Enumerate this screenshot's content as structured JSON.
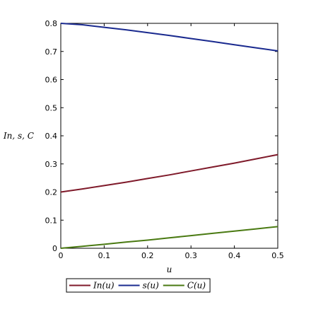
{
  "chart_data": {
    "type": "line",
    "xlabel": "u",
    "ylabel": "In, s, C",
    "xlim": [
      0,
      0.5
    ],
    "ylim": [
      0,
      0.8
    ],
    "xticks": [
      "0",
      "0.1",
      "0.2",
      "0.3",
      "0.4",
      "0.5"
    ],
    "yticks": [
      "0",
      "0.1",
      "0.2",
      "0.3",
      "0.4",
      "0.5",
      "0.6",
      "0.7",
      "0.8"
    ],
    "grid": false,
    "legend_position": "bottom",
    "series": [
      {
        "name": "In(u)",
        "color": "#7f1a2a",
        "x": [
          0,
          0.05,
          0.1,
          0.15,
          0.2,
          0.25,
          0.3,
          0.35,
          0.4,
          0.45,
          0.5
        ],
        "y": [
          0.2,
          0.211,
          0.223,
          0.235,
          0.248,
          0.261,
          0.275,
          0.289,
          0.303,
          0.318,
          0.333
        ]
      },
      {
        "name": "s(u)",
        "color": "#1a2a8f",
        "x": [
          0,
          0.05,
          0.1,
          0.15,
          0.2,
          0.25,
          0.3,
          0.35,
          0.4,
          0.45,
          0.5
        ],
        "y": [
          0.8,
          0.795,
          0.786,
          0.777,
          0.767,
          0.757,
          0.746,
          0.735,
          0.724,
          0.713,
          0.702
        ]
      },
      {
        "name": "C(u)",
        "color": "#4a7a12",
        "x": [
          0,
          0.05,
          0.1,
          0.15,
          0.2,
          0.25,
          0.3,
          0.35,
          0.4,
          0.45,
          0.5
        ],
        "y": [
          0.0,
          0.007,
          0.014,
          0.022,
          0.029,
          0.037,
          0.045,
          0.053,
          0.061,
          0.069,
          0.077
        ]
      }
    ]
  }
}
